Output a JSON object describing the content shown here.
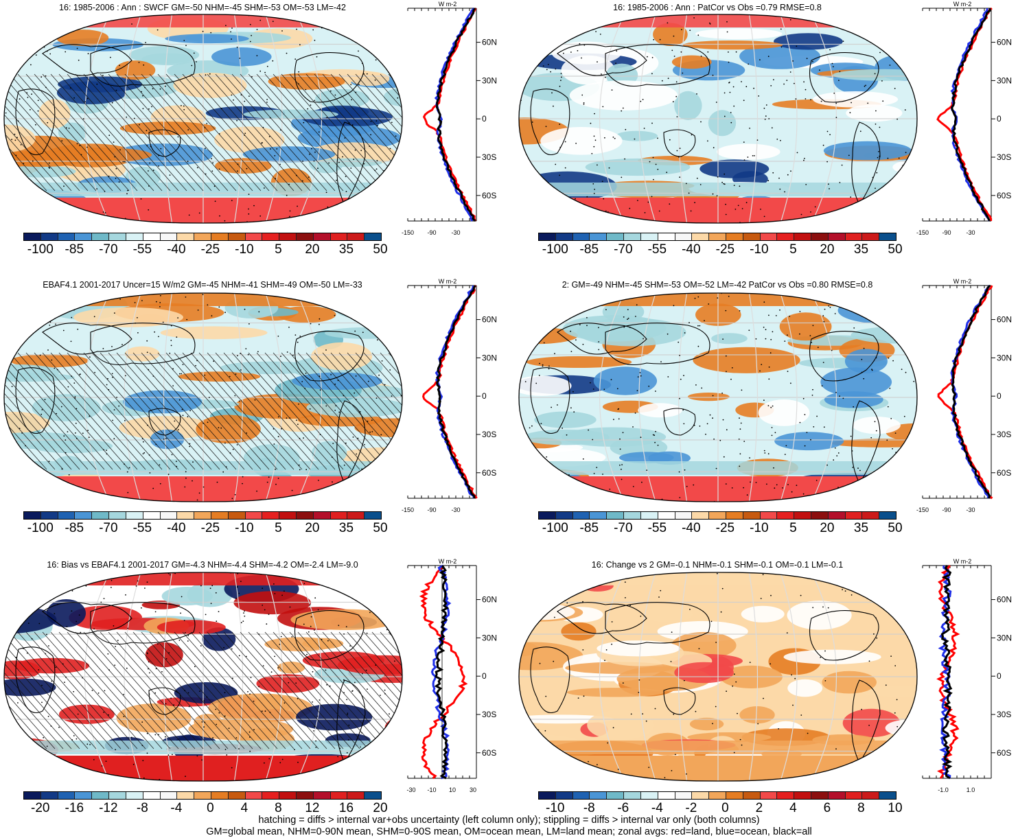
{
  "panels": [
    {
      "title": "16: 1985-2006 : Ann : SWCF GM=-50 NHM=-45 SHM=-53 OM=-53 LM=-42",
      "colorbar_labels": [
        "-100",
        "-85",
        "-70",
        "-55",
        "-40",
        "-25",
        "-10",
        "5",
        "20",
        "35",
        "50"
      ],
      "zonal_xticks": [
        "-150",
        "-90",
        "-30"
      ],
      "zonal_lat_labels": [
        "60N",
        "30N",
        "0",
        "30S",
        "60S"
      ],
      "zonal_units": "W m-2",
      "hatched": true
    },
    {
      "title": "16: 1985-2006 : Ann : PatCor vs Obs =0.79 RMSE=0.8",
      "colorbar_labels": [
        "-100",
        "-85",
        "-70",
        "-55",
        "-40",
        "-25",
        "-10",
        "5",
        "20",
        "35",
        "50"
      ],
      "zonal_xticks": [
        "-150",
        "-90",
        "-30"
      ],
      "zonal_lat_labels": [
        "60N",
        "30N",
        "0",
        "30S",
        "60S"
      ],
      "zonal_units": "W m-2",
      "hatched": false
    },
    {
      "title": "EBAF4.1 2001-2017 Uncer=15 W/m2 GM=-45 NHM=-41 SHM=-49 OM=-50 LM=-33",
      "colorbar_labels": [
        "-100",
        "-85",
        "-70",
        "-55",
        "-40",
        "-25",
        "-10",
        "5",
        "20",
        "35",
        "50"
      ],
      "zonal_xticks": [
        "-150",
        "-90",
        "-30"
      ],
      "zonal_lat_labels": [
        "60N",
        "30N",
        "0",
        "30S",
        "60S"
      ],
      "zonal_units": "W m-2",
      "hatched": true
    },
    {
      "title": "2: GM=-49 NHM=-45 SHM=-53 OM=-52 LM=-42 PatCor vs Obs =0.80 RMSE=0.8",
      "colorbar_labels": [
        "-100",
        "-85",
        "-70",
        "-55",
        "-40",
        "-25",
        "-10",
        "5",
        "20",
        "35",
        "50"
      ],
      "zonal_xticks": [
        "-150",
        "-90",
        "-30"
      ],
      "zonal_lat_labels": [
        "60N",
        "30N",
        "0",
        "30S",
        "60S"
      ],
      "zonal_units": "W m-2",
      "hatched": false
    },
    {
      "title": "16: Bias vs EBAF4.1 2001-2017 GM=-4.3 NHM=-4.4 SHM=-4.2 OM=-2.4 LM=-9.0",
      "colorbar_labels": [
        "-20",
        "-16",
        "-12",
        "-8",
        "-4",
        "0",
        "4",
        "8",
        "12",
        "16",
        "20"
      ],
      "zonal_xticks": [
        "-30",
        "-10",
        "10",
        "30"
      ],
      "zonal_lat_labels": [
        "60N",
        "30N",
        "0",
        "30S",
        "60S"
      ],
      "zonal_units": "W m-2",
      "hatched": true
    },
    {
      "title": "16: Change vs 2 GM=-0.1 NHM=-0.1 SHM=-0.1 OM=-0.1 LM=-0.1",
      "colorbar_labels": [
        "-10",
        "-8",
        "-6",
        "-4",
        "-2",
        "0",
        "2",
        "4",
        "6",
        "8",
        "10"
      ],
      "zonal_xticks": [
        "-1.0",
        "1.0"
      ],
      "zonal_lat_labels": [
        "60N",
        "30N",
        "0",
        "30S",
        "60S"
      ],
      "zonal_units": "W m-2",
      "hatched": false
    }
  ],
  "colorbar_colors": [
    "#0a1a5c",
    "#123a86",
    "#1f62b2",
    "#4a95d6",
    "#6fb9c8",
    "#a5d7de",
    "#d9f2f5",
    "#ffffff",
    "#f7f7f7",
    "#fcd9a8",
    "#f2a65a",
    "#e57d23",
    "#c75a10",
    "#f24949",
    "#e62020",
    "#c21010",
    "#8c0f0f",
    "#b40f2a",
    "#e02020",
    "#cc1a1a",
    "#0a4f8c"
  ],
  "footnote": {
    "line1": "hatching = diffs > internal var+obs uncertainty (left column only); stippling = diffs > internal var only (both columns)",
    "line2": "GM=global mean, NHM=0-90N mean, SHM=0-90S mean, OM=ocean mean, LM=land mean; zonal avgs: red=land, blue=ocean, black=all"
  }
}
